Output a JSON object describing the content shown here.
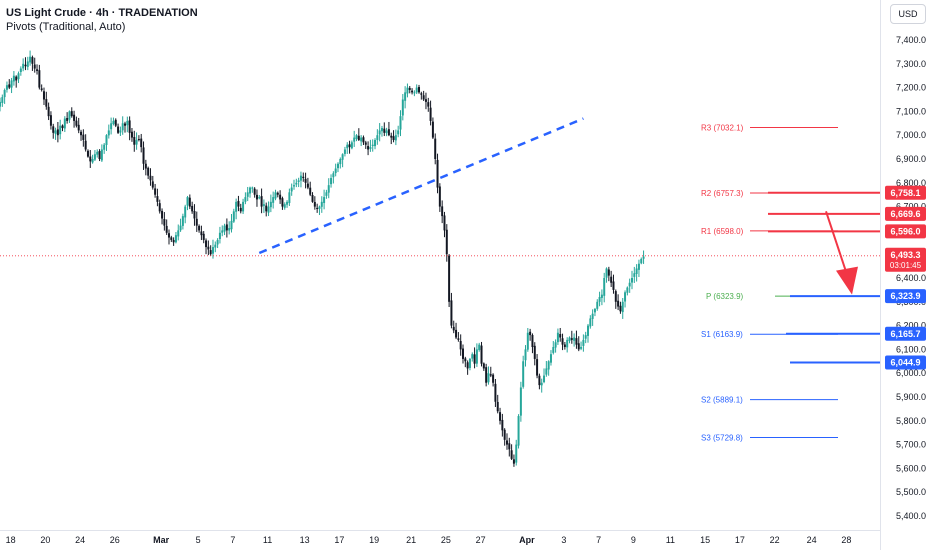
{
  "header": {
    "title": "US Light Crude · 4h · TRADENATION",
    "indicator": "Pivots (Traditional, Auto)"
  },
  "currency_button": "USD",
  "colors": {
    "up": "#26a69a",
    "down": "#131722",
    "red": "#f23645",
    "blue": "#2962ff",
    "green": "#4caf50",
    "dash": "#2962ff"
  },
  "chart_data": {
    "type": "candlestick",
    "title": "US Light Crude",
    "ylim": [
      5350,
      7500
    ],
    "y_ticks": [
      7400,
      7300,
      7200,
      7100,
      7000,
      6900,
      6800,
      6700,
      6600,
      6500,
      6400,
      6300,
      6200,
      6100,
      6000,
      5900,
      5800,
      5700,
      5600,
      5500,
      5400
    ],
    "y_tick_labels": [
      "7,400.0",
      "7,300.0",
      "7,200.0",
      "7,100.0",
      "7,000.0",
      "6,900.0",
      "6,800.0",
      "6,700.0",
      "6,600.0",
      "6,500.0",
      "6,400.0",
      "6,300.0",
      "6,200.0",
      "6,100.0",
      "6,000.0",
      "5,900.0",
      "5,800.0",
      "5,700.0",
      "5,600.0",
      "5,500.0",
      "5,400.0"
    ],
    "x_ticks": [
      {
        "label": "18",
        "i": 2
      },
      {
        "label": "20",
        "i": 17
      },
      {
        "label": "24",
        "i": 32
      },
      {
        "label": "26",
        "i": 47
      },
      {
        "label": "Mar",
        "i": 67,
        "bold": true
      },
      {
        "label": "5",
        "i": 83
      },
      {
        "label": "7",
        "i": 98
      },
      {
        "label": "11",
        "i": 113
      },
      {
        "label": "13",
        "i": 129
      },
      {
        "label": "17",
        "i": 144
      },
      {
        "label": "19",
        "i": 159
      },
      {
        "label": "21",
        "i": 175
      },
      {
        "label": "25",
        "i": 190
      },
      {
        "label": "27",
        "i": 205
      },
      {
        "label": "Apr",
        "i": 225,
        "bold": true
      },
      {
        "label": "3",
        "i": 241
      },
      {
        "label": "7",
        "i": 256
      },
      {
        "label": "9",
        "i": 271
      },
      {
        "label": "11",
        "i": 287
      },
      {
        "label": "15",
        "i": 302
      },
      {
        "label": "17",
        "i": 317
      },
      {
        "label": "22",
        "i": 332
      },
      {
        "label": "24",
        "i": 348
      },
      {
        "label": "28",
        "i": 363
      }
    ],
    "closes": [
      7140,
      7160,
      7190,
      7210,
      7200,
      7230,
      7250,
      7230,
      7260,
      7280,
      7300,
      7290,
      7310,
      7330,
      7300,
      7280,
      7270,
      7200,
      7190,
      7150,
      7120,
      7080,
      7040,
      7010,
      7020,
      7000,
      7040,
      7030,
      7070,
      7060,
      7100,
      7080,
      7060,
      7040,
      7020,
      7000,
      6980,
      6940,
      6910,
      6890,
      6900,
      6920,
      6930,
      6900,
      6940,
      6960,
      7000,
      7020,
      7050,
      7060,
      7040,
      7010,
      7020,
      7050,
      7040,
      7060,
      7010,
      6990,
      6960,
      6980,
      6980,
      6950,
      6880,
      6860,
      6830,
      6810,
      6780,
      6750,
      6720,
      6680,
      6650,
      6620,
      6590,
      6570,
      6560,
      6550,
      6580,
      6600,
      6620,
      6660,
      6700,
      6740,
      6700,
      6680,
      6650,
      6620,
      6600,
      6580,
      6560,
      6530,
      6520,
      6500,
      6530,
      6540,
      6560,
      6590,
      6600,
      6620,
      6600,
      6610,
      6640,
      6680,
      6720,
      6700,
      6680,
      6720,
      6740,
      6760,
      6780,
      6780,
      6750,
      6730,
      6740,
      6700,
      6710,
      6680,
      6700,
      6720,
      6740,
      6760,
      6750,
      6730,
      6700,
      6710,
      6720,
      6760,
      6780,
      6790,
      6800,
      6810,
      6830,
      6820,
      6800,
      6780,
      6750,
      6720,
      6700,
      6690,
      6700,
      6720,
      6740,
      6760,
      6790,
      6820,
      6840,
      6860,
      6880,
      6900,
      6920,
      6940,
      6960,
      6950,
      6970,
      6990,
      7000,
      6980,
      6990,
      6970,
      6960,
      6940,
      6950,
      6960,
      6980,
      7000,
      7020,
      7030,
      7010,
      7020,
      7000,
      6990,
      6980,
      7000,
      7020,
      7080,
      7150,
      7180,
      7200,
      7190,
      7180,
      7180,
      7200,
      7180,
      7170,
      7150,
      7140,
      7120,
      7060,
      6990,
      6900,
      6780,
      6700,
      6660,
      6600,
      6500,
      6300,
      6200,
      6180,
      6150,
      6140,
      6100,
      6060,
      6050,
      6020,
      6060,
      6080,
      6040,
      6100,
      6120,
      6040,
      6020,
      5960,
      6000,
      5990,
      5960,
      5880,
      5840,
      5800,
      5760,
      5720,
      5700,
      5680,
      5640,
      5620,
      5700,
      5820,
      5940,
      6050,
      6100,
      6170,
      6160,
      6110,
      6060,
      5990,
      5950,
      5960,
      5990,
      6020,
      6050,
      6080,
      6110,
      6130,
      6170,
      6150,
      6120,
      6110,
      6140,
      6150,
      6140,
      6150,
      6120,
      6100,
      6110,
      6140,
      6160,
      6200,
      6230,
      6250,
      6270,
      6300,
      6320,
      6330,
      6400,
      6440,
      6410,
      6380,
      6350,
      6300,
      6280,
      6260,
      6300,
      6340,
      6360,
      6380,
      6400,
      6420,
      6440,
      6460,
      6480,
      6490
    ],
    "dashed_trendline": {
      "from_i": 112,
      "from_v": 6505,
      "to_i": 252,
      "to_v": 7070
    },
    "pivots": [
      {
        "name": "R3",
        "text": "R3 (7032.1)",
        "value": 7032.1,
        "color": "#f23645"
      },
      {
        "name": "R2",
        "text": "R2 (6757.3)",
        "value": 6757.3,
        "color": "#f23645"
      },
      {
        "name": "R1",
        "text": "R1 (6598.0)",
        "value": 6598.0,
        "color": "#f23645"
      },
      {
        "name": "P",
        "text": "P (6323.9)",
        "value": 6323.9,
        "color": "#4caf50"
      },
      {
        "name": "S1",
        "text": "S1 (6163.9)",
        "value": 6163.9,
        "color": "#2962ff"
      },
      {
        "name": "S2",
        "text": "S2 (5889.1)",
        "value": 5889.1,
        "color": "#2962ff"
      },
      {
        "name": "S3",
        "text": "S3 (5729.8)",
        "value": 5729.8,
        "color": "#2962ff"
      }
    ],
    "levels": [
      {
        "value": 6758.1,
        "label": "6,758.1",
        "color": "#f23645"
      },
      {
        "value": 6669.6,
        "label": "6,669.6",
        "color": "#f23645"
      },
      {
        "value": 6596.0,
        "label": "6,596.0",
        "color": "#f23645"
      },
      {
        "value": 6323.9,
        "label": "6,323.9",
        "color": "#2962ff"
      },
      {
        "value": 6165.7,
        "label": "6,165.7",
        "color": "#2962ff"
      },
      {
        "value": 6044.9,
        "label": "6,044.9",
        "color": "#2962ff"
      }
    ],
    "current_price": {
      "value": 6493.3,
      "label": "6,493.3",
      "countdown": "03:01:45",
      "color": "#f23645"
    },
    "arrow": {
      "from_i": 325,
      "from_v": 6680,
      "to_i": 335,
      "to_v": 6330
    }
  }
}
